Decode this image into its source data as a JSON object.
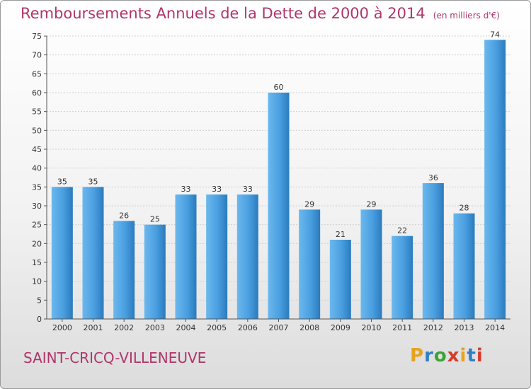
{
  "title": "Remboursements Annuels de la Dette de 2000 à 2014",
  "unit_label": "(en milliers d'€)",
  "commune": "SAINT-CRICQ-VILLENEUVE",
  "logo": {
    "text": "Proxiti",
    "colors": [
      "#e8a21f",
      "#2f7fc8",
      "#3aa335",
      "#d63a2a",
      "#e8a21f",
      "#2f7fc8",
      "#d63a2a"
    ]
  },
  "colors": {
    "title": "#b0356b",
    "bar": "#3f95d7",
    "bar_light": "#5eb0ea",
    "bar_dark": "#1f6fae"
  },
  "chart_data": {
    "type": "bar",
    "categories": [
      "2000",
      "2001",
      "2002",
      "2003",
      "2004",
      "2005",
      "2006",
      "2007",
      "2008",
      "2009",
      "2010",
      "2011",
      "2012",
      "2013",
      "2014"
    ],
    "values": [
      35,
      35,
      26,
      25,
      33,
      33,
      33,
      60,
      29,
      21,
      29,
      22,
      36,
      28,
      74
    ],
    "ylim": [
      0,
      75
    ],
    "yticks": [
      0,
      5,
      10,
      15,
      20,
      25,
      30,
      35,
      40,
      45,
      50,
      55,
      60,
      65,
      70,
      75
    ],
    "grid": true
  }
}
